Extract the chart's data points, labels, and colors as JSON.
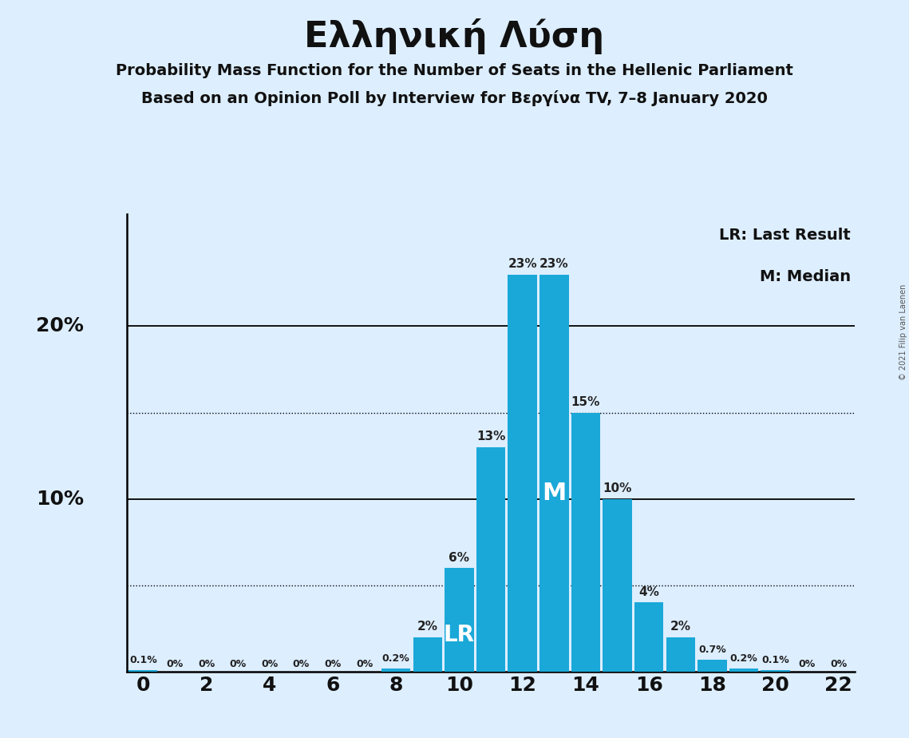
{
  "title": "Ελληνική Λύση",
  "subtitle1": "Probability Mass Function for the Number of Seats in the Hellenic Parliament",
  "subtitle2": "Based on an Opinion Poll by Interview for Βεργίνα TV, 7–8 January 2020",
  "copyright": "© 2021 Filip van Laenen",
  "background_color": "#ddeeff",
  "bar_color": "#1aa8d8",
  "seats": [
    0,
    1,
    2,
    3,
    4,
    5,
    6,
    7,
    8,
    9,
    10,
    11,
    12,
    13,
    14,
    15,
    16,
    17,
    18,
    19,
    20,
    21,
    22
  ],
  "probabilities": [
    0.1,
    0.0,
    0.0,
    0.0,
    0.0,
    0.0,
    0.0,
    0.0,
    0.2,
    2.0,
    6.0,
    13.0,
    23.0,
    23.0,
    15.0,
    10.0,
    4.0,
    2.0,
    0.7,
    0.2,
    0.1,
    0.0,
    0.0
  ],
  "labels": [
    "0.1%",
    "0%",
    "0%",
    "0%",
    "0%",
    "0%",
    "0%",
    "0%",
    "0.2%",
    "2%",
    "6%",
    "13%",
    "23%",
    "23%",
    "15%",
    "10%",
    "4%",
    "2%",
    "0.7%",
    "0.2%",
    "0.1%",
    "0%",
    "0%"
  ],
  "lr_seat": 10,
  "median_seat": 13,
  "solid_lines": [
    10,
    20
  ],
  "dotted_lines": [
    5,
    15
  ],
  "xlim": [
    -0.5,
    22.5
  ],
  "ylim": [
    0,
    26.5
  ],
  "legend_lr": "LR: Last Result",
  "legend_m": "M: Median",
  "label_fontsize_small": 9,
  "label_fontsize_large": 11,
  "ytick_labels": [
    "10%",
    "20%"
  ],
  "ytick_values": [
    10,
    20
  ],
  "title_fontsize": 32,
  "subtitle_fontsize": 14,
  "tick_fontsize": 18
}
